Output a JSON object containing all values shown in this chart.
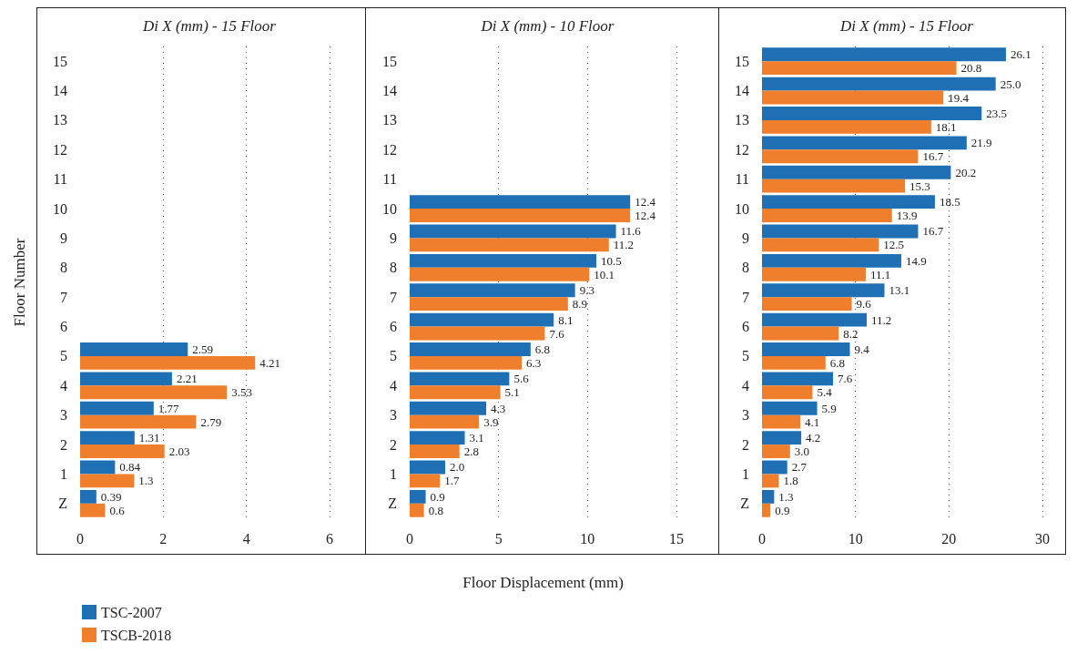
{
  "chart_data": [
    {
      "type": "bar",
      "orientation": "horizontal",
      "title": "Di X (mm) - 15 Floor",
      "ylabel": "Floor Number",
      "categories": [
        "15",
        "14",
        "13",
        "12",
        "11",
        "10",
        "9",
        "8",
        "7",
        "6",
        "5",
        "4",
        "3",
        "2",
        "1",
        "Z"
      ],
      "xlim": [
        0,
        6
      ],
      "xticks": [
        0,
        2,
        4,
        6
      ],
      "grid": "x",
      "legend": "bottom left",
      "series": [
        {
          "name": "TSC-2007",
          "color": "#1f6fb5",
          "values": [
            null,
            null,
            null,
            null,
            null,
            null,
            null,
            null,
            null,
            null,
            2.59,
            2.21,
            1.77,
            1.31,
            0.84,
            0.39
          ],
          "value_labels": [
            null,
            null,
            null,
            null,
            null,
            null,
            null,
            null,
            null,
            null,
            "2.59",
            "2.21",
            "1.77",
            "1.31",
            "0.84",
            "0.39"
          ]
        },
        {
          "name": "TSCB-2018",
          "color": "#ef7f2d",
          "values": [
            null,
            null,
            null,
            null,
            null,
            null,
            null,
            null,
            null,
            null,
            4.21,
            3.53,
            2.79,
            2.03,
            1.3,
            0.6
          ],
          "value_labels": [
            null,
            null,
            null,
            null,
            null,
            null,
            null,
            null,
            null,
            null,
            "4.21",
            "3.53",
            "2.79",
            "2.03",
            "1.3",
            "0.6"
          ]
        }
      ]
    },
    {
      "type": "bar",
      "orientation": "horizontal",
      "title": "Di X (mm) - 10 Floor",
      "xlabel": "Floor Displacement (mm)",
      "categories": [
        "15",
        "14",
        "13",
        "12",
        "11",
        "10",
        "9",
        "8",
        "7",
        "6",
        "5",
        "4",
        "3",
        "2",
        "1",
        "Z"
      ],
      "xlim": [
        0,
        15
      ],
      "xticks": [
        0,
        5,
        10,
        15
      ],
      "grid": "x",
      "series": [
        {
          "color": "#1f6fb5",
          "values": [
            null,
            null,
            null,
            null,
            null,
            12.4,
            11.6,
            10.5,
            9.3,
            8.1,
            6.8,
            5.6,
            4.3,
            3.1,
            2.0,
            0.9
          ],
          "value_labels": [
            null,
            null,
            null,
            null,
            null,
            "12.4",
            "11.6",
            "10.5",
            "9.3",
            "8.1",
            "6.8",
            "5.6",
            "4.3",
            "3.1",
            "2.0",
            "0.9"
          ]
        },
        {
          "color": "#ef7f2d",
          "values": [
            null,
            null,
            null,
            null,
            null,
            12.4,
            11.2,
            10.1,
            8.9,
            7.6,
            6.3,
            5.1,
            3.9,
            2.8,
            1.7,
            0.8
          ],
          "value_labels": [
            null,
            null,
            null,
            null,
            null,
            "12.4",
            "11.2",
            "10.1",
            "8.9",
            "7.6",
            "6.3",
            "5.1",
            "3.9",
            "2.8",
            "1.7",
            "0.8"
          ]
        }
      ]
    },
    {
      "type": "bar",
      "orientation": "horizontal",
      "title": "Di X (mm) - 15 Floor",
      "categories": [
        "15",
        "14",
        "13",
        "12",
        "11",
        "10",
        "9",
        "8",
        "7",
        "6",
        "5",
        "4",
        "3",
        "2",
        "1",
        "Z"
      ],
      "xlim": [
        0,
        30
      ],
      "xticks": [
        0,
        10,
        20,
        30
      ],
      "grid": "x",
      "series": [
        {
          "color": "#1f6fb5",
          "values": [
            26.1,
            25.0,
            23.5,
            21.9,
            20.2,
            18.5,
            16.7,
            14.9,
            13.1,
            11.2,
            9.4,
            7.6,
            5.9,
            4.2,
            2.7,
            1.3
          ],
          "value_labels": [
            "26.1",
            "25.0",
            "23.5",
            "21.9",
            "20.2",
            "18.5",
            "16.7",
            "14.9",
            "13.1",
            "11.2",
            "9.4",
            "7.6",
            "5.9",
            "4.2",
            "2.7",
            "1.3"
          ]
        },
        {
          "color": "#ef7f2d",
          "values": [
            20.8,
            19.4,
            18.1,
            16.7,
            15.3,
            13.9,
            12.5,
            11.1,
            9.6,
            8.2,
            6.8,
            5.4,
            4.1,
            3.0,
            1.8,
            0.9
          ],
          "value_labels": [
            "20.8",
            "19.4",
            "18.1",
            "16.7",
            "15.3",
            "13.9",
            "12.5",
            "11.1",
            "9.6",
            "8.2",
            "6.8",
            "5.4",
            "4.1",
            "3.0",
            "1.8",
            "0.9"
          ]
        }
      ]
    }
  ]
}
